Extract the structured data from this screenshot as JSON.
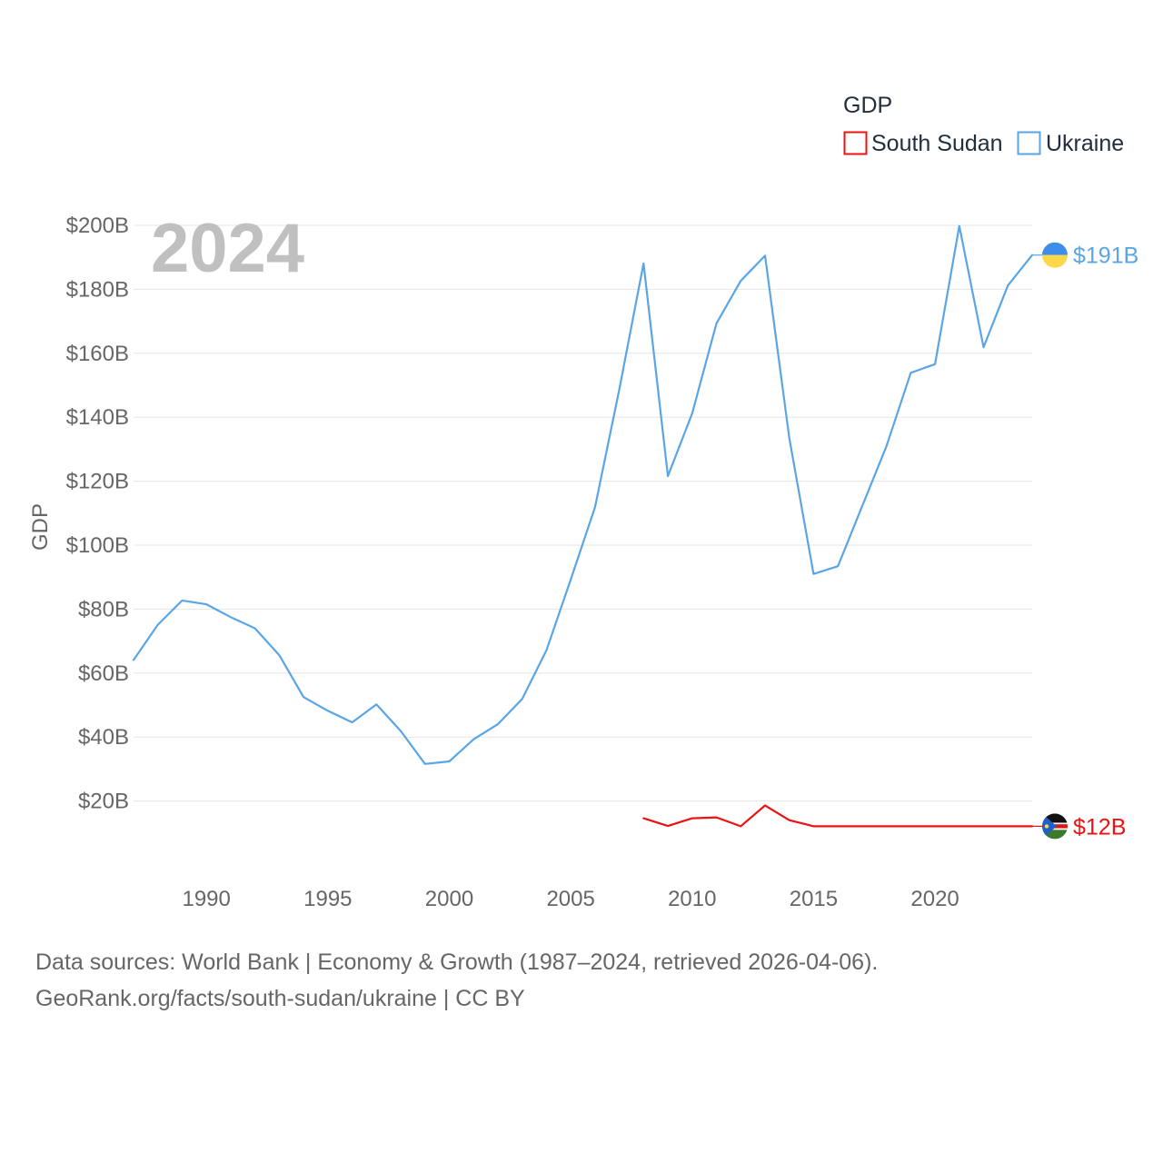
{
  "chart_data": {
    "type": "line",
    "year_label": "2024",
    "ylabel": "GDP",
    "legend": {
      "title": "GDP",
      "entries": [
        "South Sudan",
        "Ukraine"
      ]
    },
    "xlim": [
      1987,
      2024
    ],
    "ylim": [
      0,
      200
    ],
    "x_ticks": [
      1990,
      1995,
      2000,
      2005,
      2010,
      2015,
      2020
    ],
    "y_ticks": [
      20,
      40,
      60,
      80,
      100,
      120,
      140,
      160,
      180,
      200
    ],
    "y_tick_labels": [
      "$20B",
      "$40B",
      "$60B",
      "$80B",
      "$100B",
      "$120B",
      "$140B",
      "$160B",
      "$180B",
      "$200B"
    ],
    "series": [
      {
        "name": "Ukraine",
        "color": "#5aa5e6",
        "end_label": "$191B",
        "flag": "ukraine-flag",
        "x": [
          1987,
          1988,
          1989,
          1990,
          1991,
          1992,
          1993,
          1994,
          1995,
          1996,
          1997,
          1998,
          1999,
          2000,
          2001,
          2002,
          2003,
          2004,
          2005,
          2006,
          2007,
          2008,
          2009,
          2010,
          2011,
          2012,
          2013,
          2014,
          2015,
          2016,
          2017,
          2018,
          2019,
          2020,
          2021,
          2022,
          2023,
          2024
        ],
        "values": [
          64.1,
          75.1,
          82.7,
          81.5,
          77.5,
          74.0,
          65.6,
          52.5,
          48.2,
          44.6,
          50.2,
          41.9,
          31.6,
          32.4,
          39.3,
          44.0,
          51.9,
          67.1,
          89.2,
          111.9,
          148.7,
          188.1,
          121.6,
          141.2,
          169.3,
          182.6,
          190.5,
          133.5,
          91.0,
          93.4,
          112.2,
          130.9,
          153.9,
          156.6,
          199.8,
          161.9,
          181.2,
          190.7
        ]
      },
      {
        "name": "South Sudan",
        "color": "#ee1111",
        "end_label": "$12B",
        "flag": "south-sudan-flag",
        "x": [
          2008,
          2009,
          2010,
          2011,
          2012,
          2013,
          2014,
          2015,
          2016,
          2017,
          2018,
          2019,
          2020,
          2021,
          2022,
          2023,
          2024
        ],
        "values": [
          14.6,
          12.2,
          14.6,
          14.9,
          12.1,
          18.6,
          14.0,
          12.1,
          12.1,
          12.1,
          12.1,
          12.1,
          12.1,
          12.1,
          12.1,
          12.1,
          12.1
        ]
      }
    ]
  },
  "footer": {
    "line1": "Data sources: World Bank | Economy & Growth (1987–2024, retrieved 2026-04-06).",
    "line2": "GeoRank.org/facts/south-sudan/ukraine | CC BY"
  },
  "colors": {
    "ukraine_blue": "#5aa5e6",
    "south_sudan_red": "#ee1111",
    "grid": "#e6e6e6",
    "axis_text": "#666666",
    "year_text": "#c0c0c0",
    "legend_text": "#1f2d3d"
  }
}
